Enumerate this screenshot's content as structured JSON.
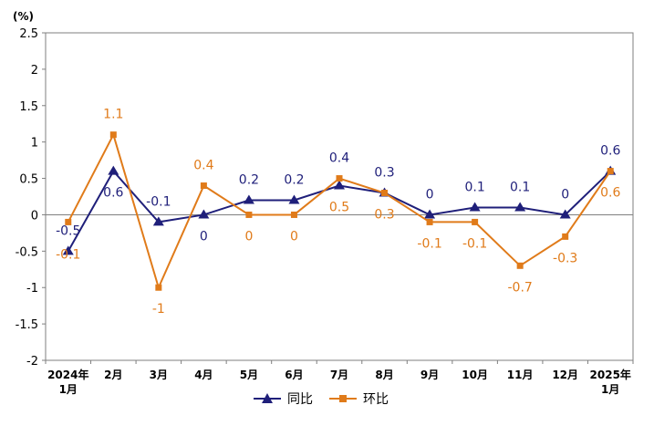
{
  "chart_data": {
    "type": "line",
    "unit_label": "(%)",
    "categories": [
      [
        "2024年",
        "1月"
      ],
      [
        "2月"
      ],
      [
        "3月"
      ],
      [
        "4月"
      ],
      [
        "5月"
      ],
      [
        "6月"
      ],
      [
        "7月"
      ],
      [
        "8月"
      ],
      [
        "9月"
      ],
      [
        "10月"
      ],
      [
        "11月"
      ],
      [
        "12月"
      ],
      [
        "2025年",
        "1月"
      ]
    ],
    "ylim": [
      -2,
      2.5
    ],
    "yticks": [
      -2,
      -1.5,
      -1,
      -0.5,
      0,
      0.5,
      1,
      1.5,
      2,
      2.5
    ],
    "legend_position": "bottom",
    "series": [
      {
        "name": "同比",
        "color": "#1f1f7a",
        "marker": "triangle",
        "values": [
          -0.5,
          0.6,
          -0.1,
          0,
          0.2,
          0.2,
          0.4,
          0.3,
          0,
          0.1,
          0.1,
          0,
          0.6
        ],
        "labels": [
          "-0.5",
          "0.6",
          "-0.1",
          "0",
          "0.2",
          "0.2",
          "0.4",
          "0.3",
          "0",
          "0.1",
          "0.1",
          "0",
          "0.6"
        ]
      },
      {
        "name": "环比",
        "color": "#e07b1a",
        "marker": "square",
        "values": [
          -0.1,
          1.1,
          -1,
          0.4,
          0,
          0,
          0.5,
          0.3,
          -0.1,
          -0.1,
          -0.7,
          -0.3,
          0.6
        ],
        "labels": [
          "-0.1",
          "1.1",
          "-1",
          "0.4",
          "0",
          "0",
          "0.5",
          "0.3",
          "-0.1",
          "-0.1",
          "-0.7",
          "-0.3",
          "0.6"
        ]
      }
    ]
  }
}
